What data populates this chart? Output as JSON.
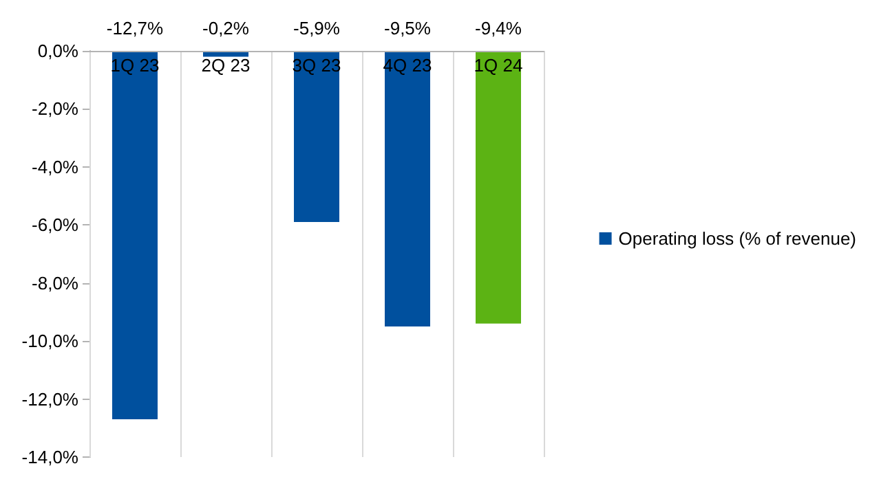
{
  "chart_data": {
    "type": "bar",
    "categories": [
      "1Q 23",
      "2Q 23",
      "3Q 23",
      "4Q 23",
      "1Q 24"
    ],
    "series": [
      {
        "name": "Operating loss (% of revenue)",
        "color": "#00509e",
        "colors": [
          "#00509e",
          "#00509e",
          "#00509e",
          "#00509e",
          "#5cb314"
        ],
        "values": [
          -12.7,
          -0.2,
          -5.9,
          -9.5,
          -9.4
        ],
        "value_labels": [
          "-12,7%",
          "-0,2%",
          "-5,9%",
          "-9,5%",
          "-9,4%"
        ]
      }
    ],
    "ylim": [
      -14,
      0
    ],
    "yticks": [
      {
        "value": -14,
        "label": "-14,0%"
      },
      {
        "value": -12,
        "label": "-12,0%"
      },
      {
        "value": -10,
        "label": "-10,0%"
      },
      {
        "value": -8,
        "label": "-8,0%"
      },
      {
        "value": -6,
        "label": "-6,0%"
      },
      {
        "value": -4,
        "label": "-4,0%"
      },
      {
        "value": -2,
        "label": "-2,0%"
      },
      {
        "value": 0,
        "label": "0,0%"
      }
    ],
    "grid": "x",
    "legend": "right"
  }
}
